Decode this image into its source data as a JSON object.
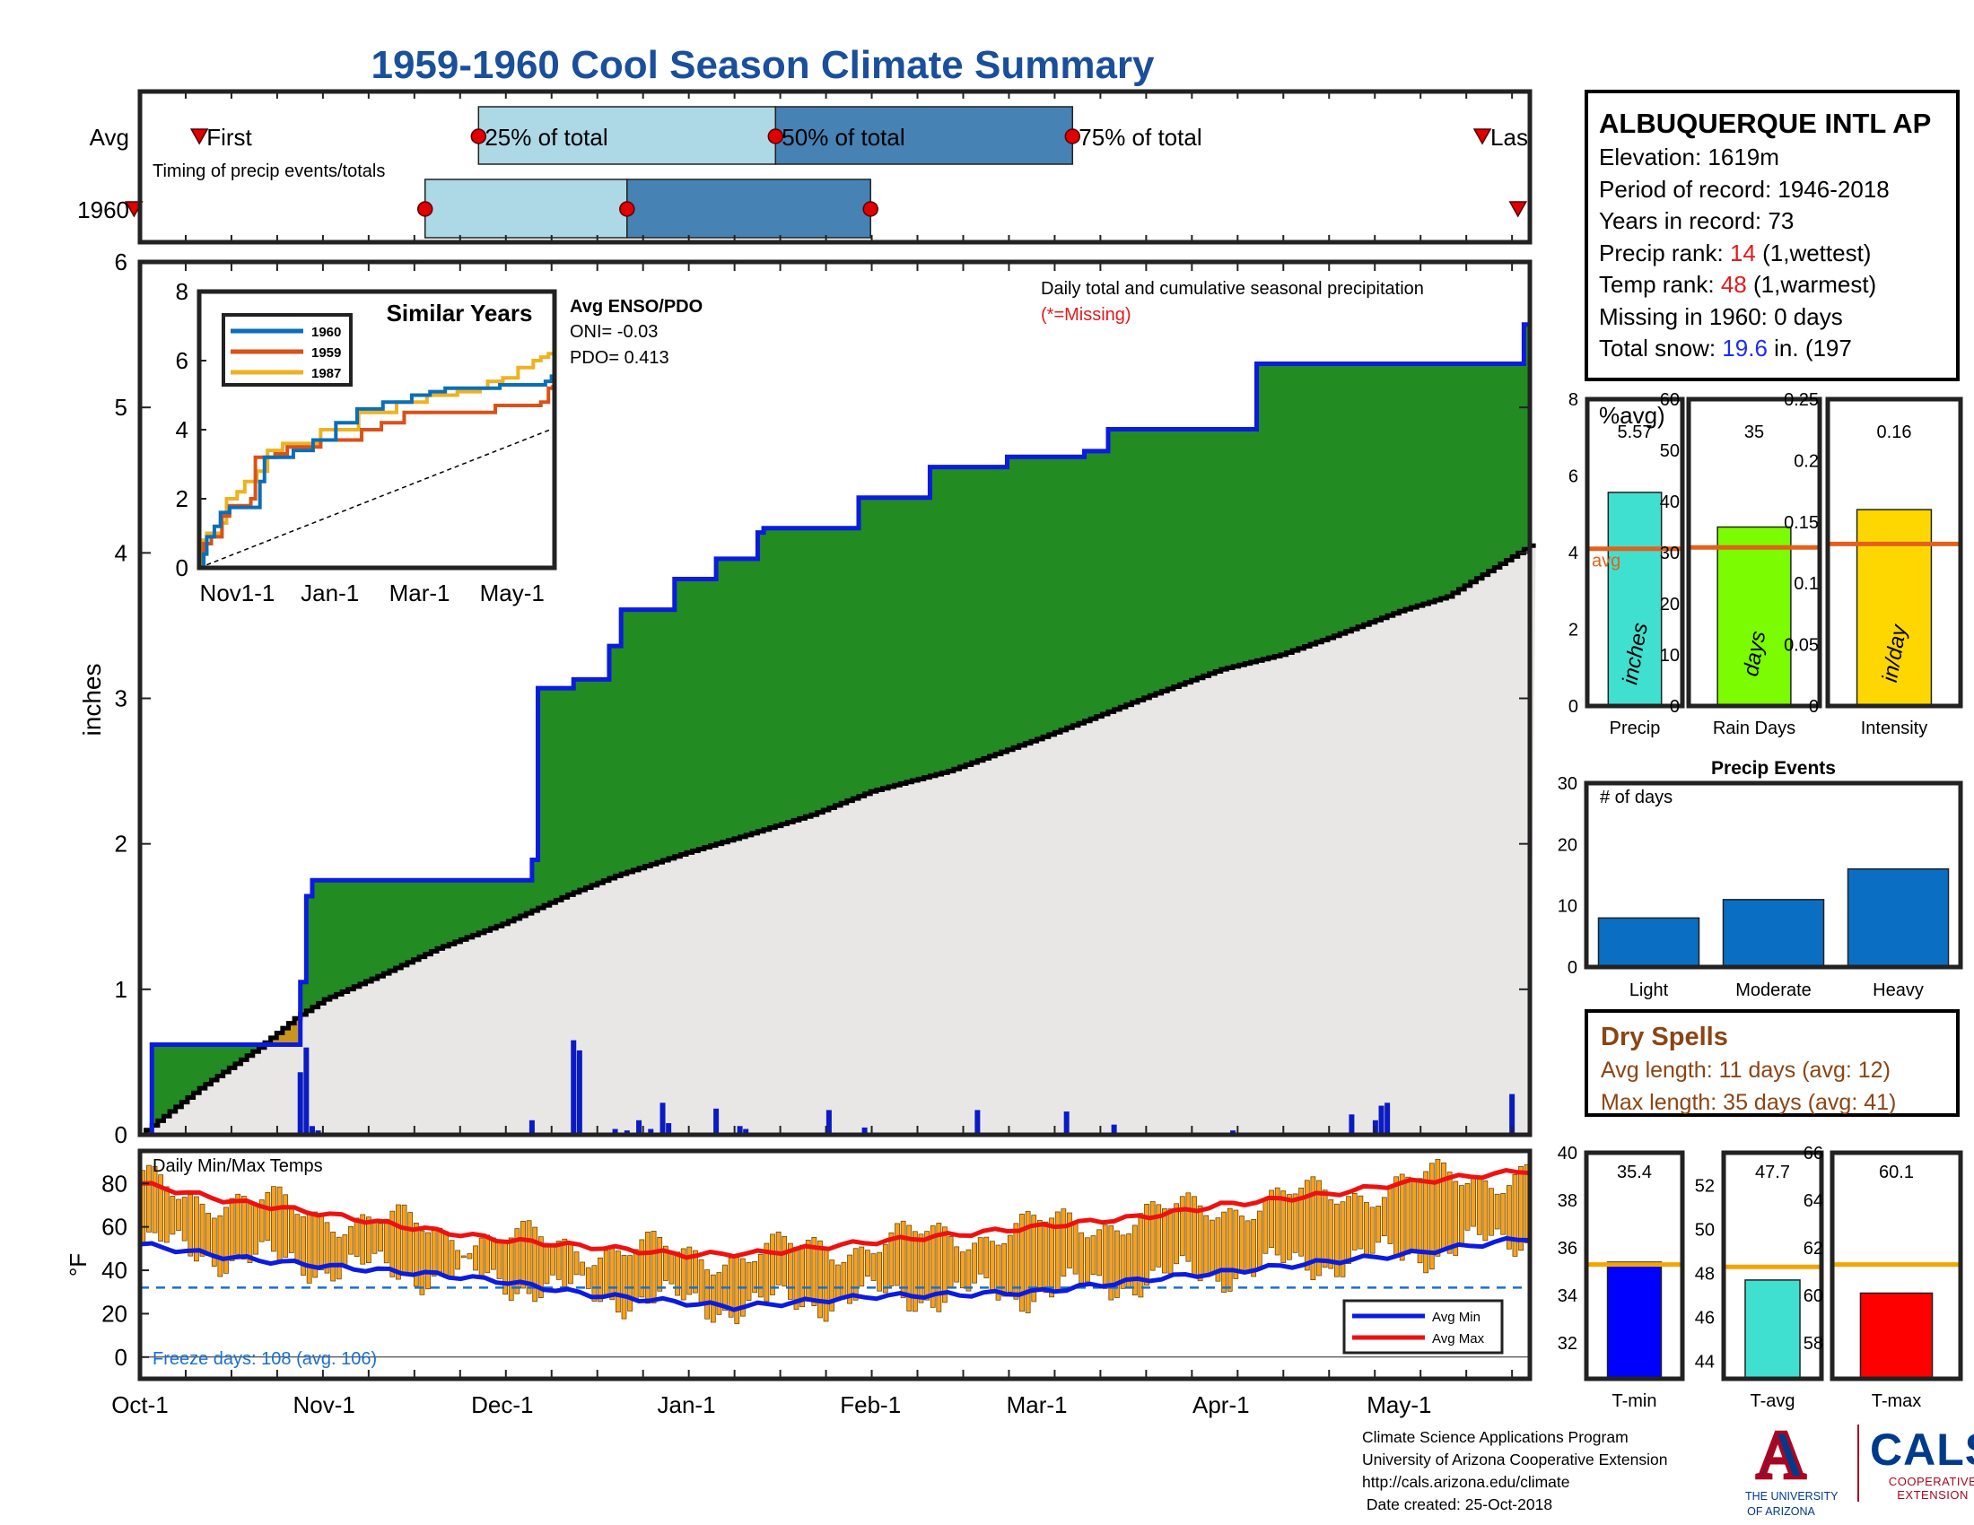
{
  "title": "1959-1960 Cool Season Climate Summary",
  "station": {
    "name": "ALBUQUERQUE INTL AP",
    "elevation": "Elevation: 1619m",
    "period": "Period of record: 1946-2018",
    "years": "Years in record: 73",
    "precip_rank_label": "Precip rank: ",
    "precip_rank_value": "14",
    "precip_rank_suffix": " (1,wettest)",
    "temp_rank_label": "Temp rank: ",
    "temp_rank_value": "48",
    "temp_rank_suffix": " (1,warmest)",
    "missing": "Missing in 1960: 0 days",
    "snow_label": "Total snow: ",
    "snow_value": "19.6",
    "snow_suffix": " in. (197",
    "snow_tail": "%avg)"
  },
  "dry_spells": {
    "heading": "Dry Spells",
    "avg": "Avg length: 11 days (avg: 12)",
    "max": "Max length: 35 days (avg: 41)"
  },
  "credits": [
    "Climate Science Applications Program",
    "University of Arizona Cooperative Extension",
    "http://cals.arizona.edu/climate",
    " Date created: 25-Oct-2018"
  ],
  "logos": {
    "ua_letter": "A",
    "ua_line1": "THE UNIVERSITY",
    "ua_line2": "OF ARIZONA",
    "cals_big": "CALS",
    "cals_line1": "COOPERATIVE",
    "cals_line2": "EXTENSION"
  },
  "colors": {
    "green": "#228b22",
    "blue_line": "#0b1be0",
    "gold": "#c8961e",
    "grey_fill": "#e8e7e6",
    "light_blue": "#add8e6",
    "steel_blue": "#4682b4",
    "orange": "#f7a11a",
    "avg_line": "#e0621c",
    "bar_blue": "#0a6ec2"
  },
  "chart_data": [
    {
      "id": "timing",
      "type": "timing-bar",
      "rows": [
        "Avg",
        "1960"
      ],
      "subtitle": "Timing of precip events/totals",
      "labels": {
        "first": "First",
        "p25": "25% of total",
        "p50": "50% of total",
        "p75": "75% of total",
        "last": "Las"
      },
      "avg_days": {
        "first": 10,
        "p25": 57,
        "p50": 107,
        "p75": 157,
        "last": 226
      },
      "y1960_days": {
        "first": -1,
        "p25": 48,
        "p50": 82,
        "p75": 123,
        "last": 232
      }
    },
    {
      "id": "main",
      "type": "area",
      "ylabel": "inches",
      "ylim": [
        0,
        6
      ],
      "yticks": [
        0,
        1,
        2,
        3,
        4,
        5,
        6
      ],
      "xlim_days": [
        0,
        234
      ],
      "note": "Daily total and cumulative seasonal precipitation",
      "missing_note": "(*=Missing)",
      "xtick_labels": [
        "Oct-1",
        "Nov-1",
        "Dec-1",
        "Jan-1",
        "Feb-1",
        "Mar-1",
        "Apr-1",
        "May-1"
      ],
      "xtick_days": [
        0,
        31,
        61,
        92,
        123,
        151,
        182,
        212
      ],
      "avg_cumulative": {
        "x": [
          0,
          10,
          20,
          26,
          31,
          40,
          50,
          61,
          72,
          80,
          92,
          102,
          113,
          123,
          136,
          151,
          160,
          170,
          182,
          192,
          201,
          212,
          220,
          234
        ],
        "y": [
          0,
          0.32,
          0.6,
          0.8,
          0.93,
          1.09,
          1.28,
          1.45,
          1.65,
          1.78,
          1.94,
          2.06,
          2.2,
          2.36,
          2.5,
          2.72,
          2.86,
          3.02,
          3.2,
          3.3,
          3.43,
          3.6,
          3.7,
          4.05
        ]
      },
      "cumulative_1960": {
        "x": [
          0,
          2,
          19,
          26,
          27,
          28,
          29,
          60,
          66,
          67,
          73,
          79,
          81,
          84,
          90,
          97,
          98,
          104,
          105,
          120,
          121,
          133,
          146,
          159,
          163,
          188,
          192,
          198,
          233
        ],
        "y": [
          0,
          0.62,
          0.62,
          0.62,
          1.05,
          1.64,
          1.75,
          1.75,
          1.89,
          3.07,
          3.13,
          3.36,
          3.61,
          3.61,
          3.82,
          3.96,
          3.96,
          4.14,
          4.17,
          4.17,
          4.38,
          4.59,
          4.66,
          4.7,
          4.85,
          5.3,
          5.3,
          5.3,
          5.57
        ]
      },
      "daily_precip": [
        {
          "day": 27,
          "in": 0.43
        },
        {
          "day": 28,
          "in": 0.6
        },
        {
          "day": 29,
          "in": 0.06
        },
        {
          "day": 30,
          "in": 0.03
        },
        {
          "day": 66,
          "in": 0.1
        },
        {
          "day": 73,
          "in": 0.65
        },
        {
          "day": 74,
          "in": 0.58
        },
        {
          "day": 80,
          "in": 0.04
        },
        {
          "day": 82,
          "in": 0.03
        },
        {
          "day": 84,
          "in": 0.1
        },
        {
          "day": 86,
          "in": 0.04
        },
        {
          "day": 88,
          "in": 0.22
        },
        {
          "day": 89,
          "in": 0.08
        },
        {
          "day": 97,
          "in": 0.18
        },
        {
          "day": 101,
          "in": 0.06
        },
        {
          "day": 102,
          "in": 0.04
        },
        {
          "day": 116,
          "in": 0.17
        },
        {
          "day": 122,
          "in": 0.05
        },
        {
          "day": 141,
          "in": 0.17
        },
        {
          "day": 156,
          "in": 0.16
        },
        {
          "day": 164,
          "in": 0.07
        },
        {
          "day": 184,
          "in": 0.03
        },
        {
          "day": 204,
          "in": 0.14
        },
        {
          "day": 208,
          "in": 0.1
        },
        {
          "day": 209,
          "in": 0.2
        },
        {
          "day": 210,
          "in": 0.22
        },
        {
          "day": 231,
          "in": 0.28
        }
      ],
      "inset": {
        "title": "Similar Years",
        "ylim": [
          0,
          8
        ],
        "yticks": [
          0,
          2,
          4,
          6,
          8
        ],
        "xtick_labels": [
          "Nov1-1",
          "Jan-1",
          "Mar-1",
          "May-1"
        ],
        "xtick_days": [
          31,
          92,
          151,
          212
        ],
        "series": [
          {
            "name": "1960",
            "color": "#0b6eb8",
            "x": [
              0,
              3,
              5,
              10,
              14,
              20,
              38,
              40,
              43,
              62,
              75,
              90,
              104,
              121,
              140,
              152,
              162,
              198,
              205,
              228,
              232
            ],
            "y": [
              0,
              0.4,
              0.9,
              1.2,
              1.6,
              1.75,
              1.75,
              2.5,
              3.2,
              3.4,
              3.7,
              4.2,
              4.6,
              4.8,
              5,
              5.1,
              5.2,
              5.3,
              5.3,
              5.4,
              5.6
            ]
          },
          {
            "name": "1959",
            "color": "#d95219",
            "x": [
              0,
              3,
              8,
              15,
              20,
              30,
              34,
              37,
              50,
              58,
              77,
              80,
              105,
              107,
              120,
              135,
              152,
              195,
              225,
              230,
              233
            ],
            "y": [
              0,
              0.7,
              0.9,
              1.5,
              1.8,
              1.8,
              2.0,
              3.2,
              3.3,
              3.5,
              3.5,
              3.7,
              3.7,
              4.0,
              4.2,
              4.5,
              4.5,
              4.7,
              4.8,
              5.2,
              5.3
            ]
          },
          {
            "name": "1987",
            "color": "#eeb221",
            "x": [
              0,
              2,
              5,
              15,
              18,
              25,
              30,
              38,
              45,
              55,
              80,
              105,
              130,
              150,
              170,
              185,
              190,
              200,
              210,
              220,
              225,
              230,
              234
            ],
            "y": [
              0,
              0.8,
              1.0,
              1.3,
              2.0,
              2.2,
              2.5,
              2.8,
              3.4,
              3.6,
              4.0,
              4.5,
              4.8,
              5.0,
              5.1,
              5.2,
              5.4,
              5.5,
              5.8,
              6.0,
              6.1,
              6.2,
              6.4
            ]
          }
        ],
        "avg_line": {
          "x": [
            0,
            234
          ],
          "y": [
            0,
            4.05
          ]
        }
      },
      "enso": {
        "title": "Avg ENSO/PDO",
        "oni": "ONI= -0.03",
        "pdo": "PDO= 0.413"
      }
    },
    {
      "id": "precip-summary",
      "type": "bar",
      "panels": [
        {
          "label": "Precip",
          "unit": "inches",
          "value": 5.57,
          "value_label": "5.57",
          "avg": 4.1,
          "avg_label": "avg",
          "ylim": [
            0,
            8
          ],
          "yticks": [
            0,
            2,
            4,
            6,
            8
          ],
          "color": "#40e0d0"
        },
        {
          "label": "Rain Days",
          "unit": "days",
          "value": 35,
          "value_label": "35",
          "avg": 31,
          "ylim": [
            0,
            60
          ],
          "yticks": [
            0,
            10,
            20,
            30,
            40,
            50,
            60
          ],
          "color": "#7cfc00"
        },
        {
          "label": "Intensity",
          "unit": "in/day",
          "value": 0.16,
          "value_label": "0.16",
          "avg": 0.132,
          "ylim": [
            0,
            0.25
          ],
          "yticks": [
            0,
            0.05,
            0.1,
            0.15,
            0.2,
            0.25
          ],
          "ytick_labels": [
            "0",
            "0.05",
            "0.1",
            "0.15",
            "0.2",
            "0.25"
          ],
          "color": "#ffd700"
        }
      ]
    },
    {
      "id": "precip-events",
      "type": "bar",
      "title": "Precip Events",
      "ylabel": "# of days",
      "categories": [
        "Light",
        "Moderate",
        "Heavy"
      ],
      "values": [
        8,
        11,
        16
      ],
      "ylim": [
        0,
        30
      ],
      "yticks": [
        0,
        10,
        20,
        30
      ]
    },
    {
      "id": "temps",
      "type": "bar-line",
      "title": "Daily Min/Max Temps",
      "ylabel": "°F",
      "ylim": [
        -10,
        95
      ],
      "yticks": [
        0,
        20,
        40,
        60,
        80
      ],
      "freeze_line": 32,
      "freeze_text": "Freeze days: 108 (avg. 106)",
      "legend": [
        "Avg Min",
        "Avg Max"
      ],
      "avg_min": {
        "x": [
          0,
          15,
          31,
          50,
          61,
          75,
          92,
          100,
          123,
          140,
          151,
          170,
          182,
          200,
          212,
          234
        ],
        "y": [
          52,
          46,
          42,
          38,
          35,
          29,
          25,
          23,
          28,
          29,
          30,
          36,
          39,
          44,
          47,
          55
        ]
      },
      "avg_max": {
        "x": [
          0,
          15,
          31,
          45,
          61,
          80,
          92,
          105,
          123,
          140,
          151,
          170,
          182,
          200,
          212,
          234
        ],
        "y": [
          80,
          72,
          66,
          60,
          54,
          50,
          47,
          48,
          53,
          57,
          60,
          65,
          70,
          75,
          80,
          86
        ]
      }
    },
    {
      "id": "temp-summary",
      "type": "bar",
      "panels": [
        {
          "label": "T-min",
          "value": 35.4,
          "value_label": "35.4",
          "avg": 35.3,
          "ylim": [
            30.5,
            40
          ],
          "yticks": [
            32,
            34,
            36,
            38,
            40
          ],
          "color": "#0000ff"
        },
        {
          "label": "T-avg",
          "value": 47.7,
          "value_label": "47.7",
          "avg": 48.3,
          "ylim": [
            43.2,
            53.5
          ],
          "yticks": [
            44,
            46,
            48,
            50,
            52
          ],
          "color": "#40e0d0"
        },
        {
          "label": "T-max",
          "value": 60.1,
          "value_label": "60.1",
          "avg": 61.3,
          "ylim": [
            56.5,
            66
          ],
          "yticks": [
            58,
            60,
            62,
            64,
            66
          ],
          "color": "#ff0000"
        }
      ]
    }
  ]
}
